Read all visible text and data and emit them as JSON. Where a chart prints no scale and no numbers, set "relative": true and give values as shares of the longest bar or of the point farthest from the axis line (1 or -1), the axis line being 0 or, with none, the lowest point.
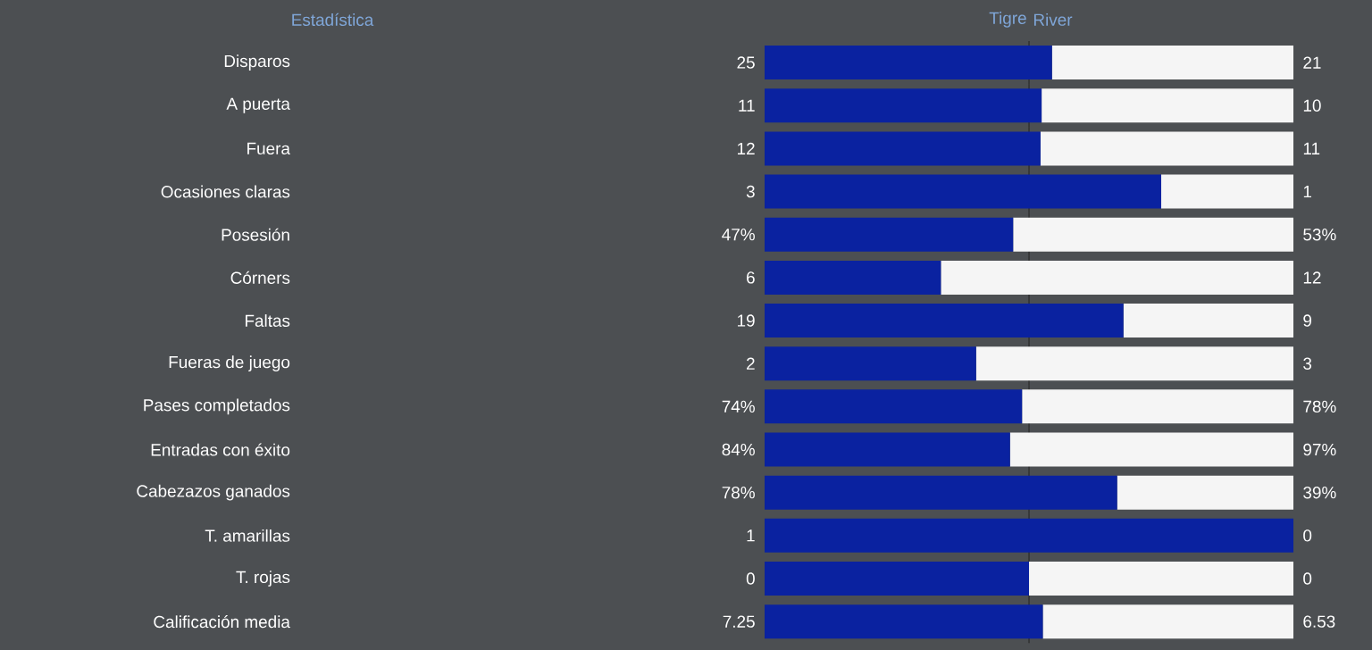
{
  "chart_data": [
    {
      "type": "bar",
      "orientation": "horizontal",
      "stacked": true,
      "ylabel": "Estadística",
      "categories": [
        "Disparos"
      ],
      "xlim": [
        0,
        46
      ],
      "ref_lines": [
        {
          "axis": "x",
          "value": 23,
          "color": "#2a2a2a"
        }
      ],
      "series": [
        {
          "name": "Tigre",
          "color": "#0a22a0",
          "values": [
            25
          ],
          "value_labels": [
            "25"
          ]
        },
        {
          "name": "River",
          "color": "#f5f5f5",
          "values": [
            21
          ],
          "value_labels": [
            "21"
          ]
        }
      ]
    },
    {
      "type": "bar",
      "orientation": "horizontal",
      "stacked": true,
      "categories": [
        "A puerta"
      ],
      "xlim": [
        0,
        21
      ],
      "ref_lines": [
        {
          "axis": "x",
          "value": 10.5,
          "color": "#2a2a2a"
        }
      ],
      "series": [
        {
          "color": "#0a22a0",
          "values": [
            11
          ],
          "value_labels": [
            "11"
          ]
        },
        {
          "color": "#f5f5f5",
          "values": [
            10
          ],
          "value_labels": [
            "10"
          ]
        }
      ]
    },
    {
      "type": "bar",
      "orientation": "horizontal",
      "stacked": true,
      "categories": [
        "Fuera"
      ],
      "xlim": [
        0,
        23
      ],
      "ref_lines": [
        {
          "axis": "x",
          "value": 11.5,
          "color": "#2a2a2a"
        }
      ],
      "series": [
        {
          "color": "#0a22a0",
          "values": [
            12
          ],
          "value_labels": [
            "12"
          ]
        },
        {
          "color": "#f5f5f5",
          "values": [
            11
          ],
          "value_labels": [
            "11"
          ]
        }
      ]
    },
    {
      "type": "bar",
      "orientation": "horizontal",
      "stacked": true,
      "categories": [
        "Ocasiones claras"
      ],
      "xlim": [
        0,
        4
      ],
      "ref_lines": [
        {
          "axis": "x",
          "value": 2,
          "color": "#2a2a2a"
        }
      ],
      "series": [
        {
          "color": "#0a22a0",
          "values": [
            3
          ],
          "value_labels": [
            "3"
          ]
        },
        {
          "color": "#f5f5f5",
          "values": [
            1
          ],
          "value_labels": [
            "1"
          ]
        }
      ]
    },
    {
      "type": "bar",
      "orientation": "horizontal",
      "stacked": true,
      "categories": [
        "Posesión"
      ],
      "xlim": [
        0,
        100
      ],
      "ref_lines": [
        {
          "axis": "x",
          "value": 50,
          "color": "#2a2a2a"
        }
      ],
      "series": [
        {
          "color": "#0a22a0",
          "values": [
            47
          ],
          "value_labels": [
            "47%"
          ]
        },
        {
          "color": "#f5f5f5",
          "values": [
            53
          ],
          "value_labels": [
            "53%"
          ]
        }
      ]
    },
    {
      "type": "bar",
      "orientation": "horizontal",
      "stacked": true,
      "categories": [
        "Córners"
      ],
      "xlim": [
        0,
        18
      ],
      "ref_lines": [
        {
          "axis": "x",
          "value": 9,
          "color": "#2a2a2a"
        }
      ],
      "series": [
        {
          "color": "#0a22a0",
          "values": [
            6
          ],
          "value_labels": [
            "6"
          ]
        },
        {
          "color": "#f5f5f5",
          "values": [
            12
          ],
          "value_labels": [
            "12"
          ]
        }
      ]
    },
    {
      "type": "bar",
      "orientation": "horizontal",
      "stacked": true,
      "categories": [
        "Faltas"
      ],
      "xlim": [
        0,
        28
      ],
      "ref_lines": [
        {
          "axis": "x",
          "value": 14,
          "color": "#2a2a2a"
        }
      ],
      "series": [
        {
          "color": "#0a22a0",
          "values": [
            19
          ],
          "value_labels": [
            "19"
          ]
        },
        {
          "color": "#f5f5f5",
          "values": [
            9
          ],
          "value_labels": [
            "9"
          ]
        }
      ]
    },
    {
      "type": "bar",
      "orientation": "horizontal",
      "stacked": true,
      "categories": [
        "Fueras de juego"
      ],
      "xlim": [
        0,
        5
      ],
      "ref_lines": [
        {
          "axis": "x",
          "value": 2.5,
          "color": "#2a2a2a"
        }
      ],
      "series": [
        {
          "color": "#0a22a0",
          "values": [
            2
          ],
          "value_labels": [
            "2"
          ]
        },
        {
          "color": "#f5f5f5",
          "values": [
            3
          ],
          "value_labels": [
            "3"
          ]
        }
      ]
    },
    {
      "type": "bar",
      "orientation": "horizontal",
      "stacked": true,
      "categories": [
        "Pases completados"
      ],
      "xlim": [
        0,
        152
      ],
      "ref_lines": [
        {
          "axis": "x",
          "value": 76,
          "color": "#2a2a2a"
        }
      ],
      "series": [
        {
          "color": "#0a22a0",
          "values": [
            74
          ],
          "value_labels": [
            "74%"
          ]
        },
        {
          "color": "#f5f5f5",
          "values": [
            78
          ],
          "value_labels": [
            "78%"
          ]
        }
      ]
    },
    {
      "type": "bar",
      "orientation": "horizontal",
      "stacked": true,
      "categories": [
        "Entradas con éxito"
      ],
      "xlim": [
        0,
        181
      ],
      "ref_lines": [
        {
          "axis": "x",
          "value": 90.5,
          "color": "#2a2a2a"
        }
      ],
      "series": [
        {
          "color": "#0a22a0",
          "values": [
            84
          ],
          "value_labels": [
            "84%"
          ]
        },
        {
          "color": "#f5f5f5",
          "values": [
            97
          ],
          "value_labels": [
            "97%"
          ]
        }
      ]
    },
    {
      "type": "bar",
      "orientation": "horizontal",
      "stacked": true,
      "categories": [
        "Cabezazos ganados"
      ],
      "xlim": [
        0,
        117
      ],
      "ref_lines": [
        {
          "axis": "x",
          "value": 58.5,
          "color": "#2a2a2a"
        }
      ],
      "series": [
        {
          "color": "#0a22a0",
          "values": [
            78
          ],
          "value_labels": [
            "78%"
          ]
        },
        {
          "color": "#f5f5f5",
          "values": [
            39
          ],
          "value_labels": [
            "39%"
          ]
        }
      ]
    },
    {
      "type": "bar",
      "orientation": "horizontal",
      "stacked": true,
      "relative": true,
      "categories": [
        "T. amarillas"
      ],
      "annotations": [
        "1",
        "0"
      ],
      "ref_lines": [
        {
          "axis": "x",
          "value": 0.5,
          "color": "#2a2a2a"
        }
      ],
      "series": [
        {
          "color": "#0a22a0",
          "values": [
            1
          ]
        },
        {
          "color": "#f5f5f5",
          "values": [
            0
          ]
        }
      ]
    },
    {
      "type": "bar",
      "orientation": "horizontal",
      "stacked": true,
      "relative": true,
      "categories": [
        "T. rojas"
      ],
      "annotations": [
        "0",
        "0"
      ],
      "ref_lines": [
        {
          "axis": "x",
          "value": 0.5,
          "color": "#2a2a2a"
        }
      ],
      "series": [
        {
          "color": "#0a22a0",
          "values": [
            0.5
          ]
        },
        {
          "color": "#f5f5f5",
          "values": [
            0.5
          ]
        }
      ]
    },
    {
      "type": "bar",
      "orientation": "horizontal",
      "stacked": true,
      "categories": [
        "Calificación media"
      ],
      "xlim": [
        0,
        13.78
      ],
      "ref_lines": [
        {
          "axis": "x",
          "value": 6.89,
          "color": "#2a2a2a"
        }
      ],
      "series": [
        {
          "color": "#0a22a0",
          "values": [
            7.25
          ],
          "value_labels": [
            "7.25"
          ]
        },
        {
          "color": "#f5f5f5",
          "values": [
            6.53
          ],
          "value_labels": [
            "6.53"
          ]
        }
      ]
    }
  ]
}
